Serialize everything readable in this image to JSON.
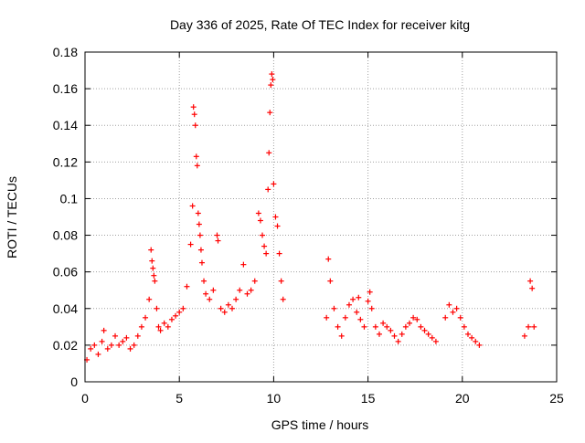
{
  "chart_data": {
    "type": "scatter",
    "title": "Day 336 of 2025, Rate Of TEC Index for receiver kitg",
    "xlabel": "GPS time / hours",
    "ylabel": "ROTI / TECUs",
    "xlim": [
      0,
      25
    ],
    "ylim": [
      0,
      0.18
    ],
    "x_ticks": [
      0,
      5,
      10,
      15,
      20,
      25
    ],
    "x_tick_labels": [
      "0",
      "5",
      "10",
      "15",
      "20",
      "25"
    ],
    "y_ticks": [
      0,
      0.02,
      0.04,
      0.06,
      0.08,
      0.1,
      0.12,
      0.14,
      0.16,
      0.18
    ],
    "y_tick_labels": [
      "0",
      "0.02",
      "0.04",
      "0.06",
      "0.08",
      "0.1",
      "0.12",
      "0.14",
      "0.16",
      "0.18"
    ],
    "grid": true,
    "legend": "none",
    "marker": "+",
    "marker_color": "#ff0000",
    "x": [
      0.1,
      0.3,
      0.5,
      0.7,
      0.9,
      1.0,
      1.2,
      1.4,
      1.6,
      1.8,
      2.0,
      2.2,
      2.4,
      2.6,
      2.8,
      3.0,
      3.2,
      3.4,
      3.5,
      3.55,
      3.6,
      3.65,
      3.7,
      3.8,
      3.9,
      4.0,
      4.2,
      4.4,
      4.6,
      4.8,
      5.0,
      5.2,
      5.4,
      5.6,
      5.7,
      5.75,
      5.8,
      5.85,
      5.9,
      5.95,
      6.0,
      6.05,
      6.1,
      6.15,
      6.2,
      6.3,
      6.4,
      6.6,
      6.8,
      7.0,
      7.05,
      7.2,
      7.4,
      7.6,
      7.8,
      8.0,
      8.2,
      8.4,
      8.6,
      8.8,
      9.0,
      9.2,
      9.3,
      9.4,
      9.5,
      9.6,
      9.7,
      9.75,
      9.8,
      9.85,
      9.9,
      9.95,
      10.0,
      10.1,
      10.2,
      10.3,
      10.4,
      10.5,
      12.8,
      12.9,
      13.0,
      13.2,
      13.4,
      13.6,
      13.8,
      14.0,
      14.2,
      14.4,
      14.5,
      14.6,
      14.8,
      15.0,
      15.1,
      15.2,
      15.4,
      15.6,
      15.8,
      16.0,
      16.2,
      16.4,
      16.6,
      16.8,
      17.0,
      17.2,
      17.4,
      17.6,
      17.8,
      18.0,
      18.2,
      18.4,
      18.6,
      19.1,
      19.3,
      19.5,
      19.7,
      19.9,
      20.1,
      20.3,
      20.5,
      20.7,
      20.9,
      23.3,
      23.5,
      23.6,
      23.7,
      23.8
    ],
    "y": [
      0.012,
      0.018,
      0.02,
      0.015,
      0.022,
      0.028,
      0.018,
      0.02,
      0.025,
      0.02,
      0.022,
      0.024,
      0.018,
      0.02,
      0.025,
      0.03,
      0.035,
      0.045,
      0.072,
      0.066,
      0.062,
      0.058,
      0.055,
      0.04,
      0.03,
      0.028,
      0.032,
      0.03,
      0.034,
      0.036,
      0.038,
      0.04,
      0.052,
      0.075,
      0.096,
      0.15,
      0.146,
      0.14,
      0.123,
      0.118,
      0.092,
      0.086,
      0.08,
      0.072,
      0.065,
      0.055,
      0.048,
      0.045,
      0.05,
      0.08,
      0.077,
      0.04,
      0.038,
      0.042,
      0.04,
      0.045,
      0.05,
      0.064,
      0.048,
      0.05,
      0.055,
      0.092,
      0.088,
      0.08,
      0.074,
      0.07,
      0.105,
      0.125,
      0.147,
      0.162,
      0.168,
      0.165,
      0.108,
      0.09,
      0.085,
      0.07,
      0.055,
      0.045,
      0.035,
      0.067,
      0.055,
      0.04,
      0.03,
      0.025,
      0.035,
      0.042,
      0.045,
      0.038,
      0.046,
      0.034,
      0.03,
      0.044,
      0.049,
      0.04,
      0.03,
      0.026,
      0.032,
      0.03,
      0.028,
      0.025,
      0.022,
      0.026,
      0.03,
      0.032,
      0.035,
      0.034,
      0.03,
      0.028,
      0.026,
      0.024,
      0.022,
      0.035,
      0.042,
      0.038,
      0.04,
      0.035,
      0.03,
      0.026,
      0.024,
      0.022,
      0.02,
      0.025,
      0.03,
      0.055,
      0.051,
      0.03
    ]
  }
}
